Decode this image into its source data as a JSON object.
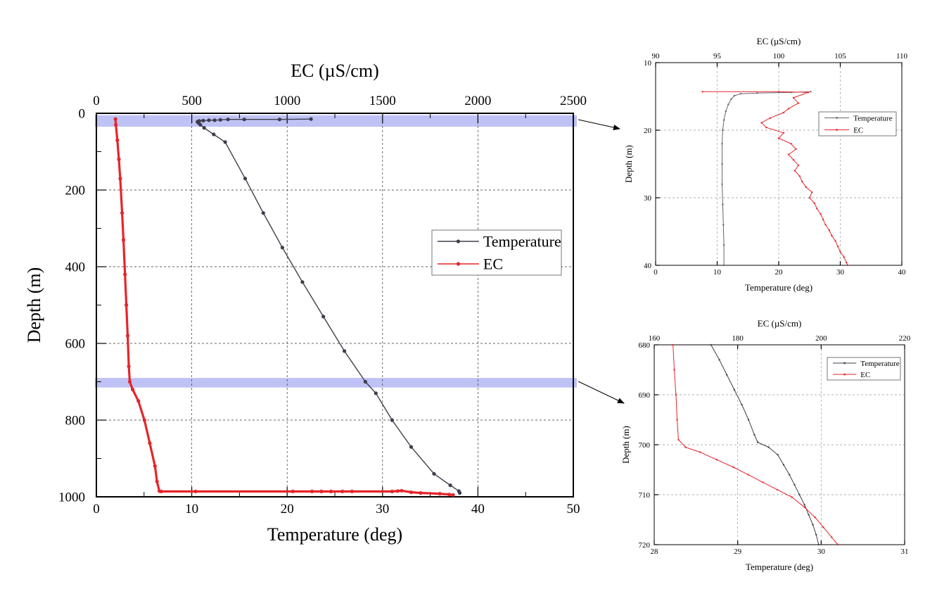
{
  "chart_data": [
    {
      "id": "main",
      "type": "line",
      "xlabel": "Temperature (deg)",
      "x2label": "EC (µS/cm)",
      "ylabel": "Depth (m)",
      "xlim": [
        0,
        50
      ],
      "x2lim": [
        0,
        2500
      ],
      "ylim": [
        0,
        1000
      ],
      "y_inverted": true,
      "grid": true,
      "legend_position": "center-right",
      "xticks": [
        "0",
        "10",
        "20",
        "30",
        "40",
        "50"
      ],
      "x2ticks": [
        "0",
        "500",
        "1000",
        "1500",
        "2000",
        "2500"
      ],
      "yticks": [
        "0",
        "200",
        "400",
        "600",
        "800",
        "1000"
      ],
      "highlight_bands": [
        [
          5,
          35
        ],
        [
          690,
          715
        ]
      ],
      "series": [
        {
          "name": "Temperature",
          "axis": "bottom",
          "color": "#3d3d4a",
          "points": [
            [
              22.5,
              15
            ],
            [
              19.2,
              16
            ],
            [
              15.5,
              16
            ],
            [
              13.8,
              16
            ],
            [
              13.0,
              17
            ],
            [
              12.4,
              18
            ],
            [
              11.8,
              18
            ],
            [
              11.2,
              19
            ],
            [
              10.8,
              20
            ],
            [
              10.6,
              22
            ],
            [
              10.7,
              25
            ],
            [
              10.9,
              30
            ],
            [
              11.3,
              38
            ],
            [
              12.3,
              55
            ],
            [
              13.5,
              75
            ],
            [
              15.6,
              170
            ],
            [
              17.5,
              260
            ],
            [
              19.5,
              350
            ],
            [
              21.6,
              440
            ],
            [
              23.8,
              530
            ],
            [
              26.0,
              620
            ],
            [
              28.2,
              700
            ],
            [
              29.3,
              730
            ],
            [
              31.0,
              800
            ],
            [
              33.0,
              870
            ],
            [
              35.4,
              940
            ],
            [
              37.1,
              970
            ],
            [
              38.0,
              985
            ],
            [
              38.1,
              990
            ]
          ]
        },
        {
          "name": "EC",
          "axis": "top",
          "color": "#e5252a",
          "points": [
            [
              100,
              15
            ],
            [
              102,
              30
            ],
            [
              110,
              70
            ],
            [
              118,
              120
            ],
            [
              125,
              170
            ],
            [
              135,
              260
            ],
            [
              142,
              330
            ],
            [
              150,
              420
            ],
            [
              157,
              500
            ],
            [
              164,
              580
            ],
            [
              170,
              660
            ],
            [
              175,
              700
            ],
            [
              190,
              720
            ],
            [
              220,
              750
            ],
            [
              252,
              800
            ],
            [
              280,
              860
            ],
            [
              307,
              920
            ],
            [
              318,
              960
            ],
            [
              330,
              985
            ],
            [
              340,
              986
            ],
            [
              520,
              986
            ],
            [
              1030,
              986
            ],
            [
              1130,
              986
            ],
            [
              1180,
              986
            ],
            [
              1230,
              986
            ],
            [
              1290,
              986
            ],
            [
              1340,
              986
            ],
            [
              1550,
              986
            ],
            [
              1580,
              985
            ],
            [
              1600,
              984
            ],
            [
              1650,
              988
            ],
            [
              1700,
              990
            ],
            [
              1800,
              992
            ],
            [
              1850,
              994
            ],
            [
              1870,
              995
            ]
          ]
        }
      ]
    },
    {
      "id": "inset_top",
      "type": "line",
      "xlabel": "Temperature (deg)",
      "x2label": "EC (µS/cm)",
      "ylabel": "Depth (m)",
      "xlim": [
        0,
        40
      ],
      "x2lim": [
        90,
        110
      ],
      "ylim": [
        10,
        40
      ],
      "y_inverted": true,
      "grid": true,
      "legend_position": "center-right",
      "xticks": [
        "0",
        "10",
        "20",
        "30",
        "40"
      ],
      "x2ticks": [
        "90",
        "95",
        "100",
        "105",
        "110"
      ],
      "yticks": [
        "10",
        "20",
        "30",
        "40"
      ],
      "series": [
        {
          "name": "Temperature",
          "axis": "bottom",
          "color": "#666670",
          "points": [
            [
              25.2,
              14.3
            ],
            [
              22.0,
              14.4
            ],
            [
              16.5,
              14.5
            ],
            [
              13.8,
              14.6
            ],
            [
              12.8,
              14.9
            ],
            [
              12.3,
              15.4
            ],
            [
              11.8,
              16.2
            ],
            [
              11.4,
              17.2
            ],
            [
              11.1,
              18.5
            ],
            [
              10.9,
              20
            ],
            [
              10.8,
              22
            ],
            [
              10.8,
              25
            ],
            [
              10.8,
              28
            ],
            [
              10.9,
              31
            ],
            [
              11.0,
              34
            ],
            [
              11.1,
              37
            ],
            [
              11.1,
              40
            ]
          ]
        },
        {
          "name": "EC",
          "axis": "top",
          "color": "#e5252a",
          "points": [
            [
              93.8,
              14.3
            ],
            [
              100,
              14.3
            ],
            [
              102.4,
              14.4
            ],
            [
              101.2,
              15.2
            ],
            [
              101.6,
              16
            ],
            [
              100.8,
              16.8
            ],
            [
              100.4,
              17.4
            ],
            [
              99.3,
              18.2
            ],
            [
              98.6,
              18.9
            ],
            [
              99.0,
              19.6
            ],
            [
              100.4,
              20.4
            ],
            [
              100.0,
              21.2
            ],
            [
              101.0,
              22
            ],
            [
              101.4,
              22.8
            ],
            [
              100.8,
              23.6
            ],
            [
              101.2,
              24.4
            ],
            [
              101.6,
              25.2
            ],
            [
              101.3,
              26
            ],
            [
              101.7,
              26.8
            ],
            [
              101.9,
              27.6
            ],
            [
              102.2,
              28.4
            ],
            [
              102.7,
              29.2
            ],
            [
              102.5,
              30
            ],
            [
              102.9,
              30.8
            ],
            [
              103.1,
              31.6
            ],
            [
              103.4,
              32.4
            ],
            [
              103.6,
              33.2
            ],
            [
              103.8,
              34
            ],
            [
              104.1,
              34.8
            ],
            [
              104.3,
              35.6
            ],
            [
              104.6,
              36.4
            ],
            [
              104.8,
              37.2
            ],
            [
              105.0,
              38
            ],
            [
              105.3,
              38.8
            ],
            [
              105.5,
              39.6
            ],
            [
              105.6,
              40
            ]
          ]
        }
      ]
    },
    {
      "id": "inset_bottom",
      "type": "line",
      "xlabel": "Temperature (deg)",
      "x2label": "EC (µS/cm)",
      "ylabel": "Depth (m)",
      "xlim": [
        28,
        31
      ],
      "x2lim": [
        160,
        220
      ],
      "ylim": [
        680,
        720
      ],
      "y_inverted": true,
      "grid": true,
      "legend_position": "top-right",
      "xticks": [
        "28",
        "29",
        "30",
        "31"
      ],
      "x2ticks": [
        "160",
        "180",
        "200",
        "220"
      ],
      "yticks": [
        "680",
        "690",
        "700",
        "710",
        "720"
      ],
      "series": [
        {
          "name": "Temperature",
          "axis": "bottom",
          "color": "#3d3d4a",
          "points": [
            [
              28.68,
              680
            ],
            [
              28.78,
              683
            ],
            [
              28.87,
              686
            ],
            [
              28.96,
              689
            ],
            [
              29.05,
              692
            ],
            [
              29.13,
              695
            ],
            [
              29.2,
              698
            ],
            [
              29.24,
              699.5
            ],
            [
              29.37,
              700.5
            ],
            [
              29.48,
              702
            ],
            [
              29.55,
              704
            ],
            [
              29.62,
              706
            ],
            [
              29.68,
              708
            ],
            [
              29.74,
              710
            ],
            [
              29.8,
              712
            ],
            [
              29.85,
              714
            ],
            [
              29.9,
              716
            ],
            [
              29.94,
              718
            ],
            [
              29.97,
              720
            ]
          ]
        },
        {
          "name": "EC",
          "axis": "top",
          "color": "#e5252a",
          "points": [
            [
              164.5,
              680
            ],
            [
              164.8,
              685
            ],
            [
              165.2,
              690
            ],
            [
              165.5,
              695
            ],
            [
              165.8,
              699
            ],
            [
              167.5,
              700.5
            ],
            [
              171.0,
              701.5
            ],
            [
              175.0,
              703
            ],
            [
              179.0,
              704.5
            ],
            [
              182.5,
              706
            ],
            [
              186.0,
              707.5
            ],
            [
              189.5,
              709
            ],
            [
              193.0,
              710.5
            ],
            [
              196.0,
              712.5
            ],
            [
              198.5,
              714.5
            ],
            [
              200.5,
              716.5
            ],
            [
              202.5,
              718.5
            ],
            [
              204.0,
              720
            ]
          ]
        }
      ]
    }
  ]
}
